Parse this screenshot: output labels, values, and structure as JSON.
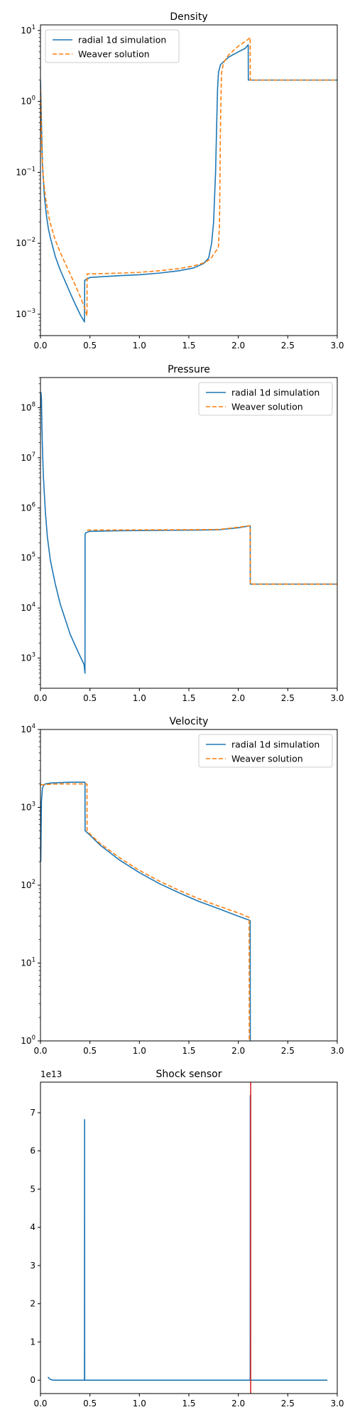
{
  "chart_data": [
    {
      "type": "line",
      "title": "Density",
      "yscale": "log",
      "xlim": [
        0,
        3
      ],
      "ylim": [
        0.0005,
        12
      ],
      "x_ticks": [
        "0.0",
        "0.5",
        "1.0",
        "1.5",
        "2.0",
        "2.5",
        "3.0"
      ],
      "y_ticks": [
        {
          "value": 0.001,
          "base": "10",
          "exp": "−3"
        },
        {
          "value": 0.01,
          "base": "10",
          "exp": "−2"
        },
        {
          "value": 0.1,
          "base": "10",
          "exp": "−1"
        },
        {
          "value": 1,
          "base": "10",
          "exp": "0"
        },
        {
          "value": 10,
          "base": "10",
          "exp": "1"
        }
      ],
      "legend": {
        "position": "upper-left"
      },
      "series": [
        {
          "name": "radial 1d simulation",
          "color": "#1f77b4",
          "dash": "solid",
          "x": [
            0.0,
            0.01,
            0.02,
            0.04,
            0.06,
            0.08,
            0.1,
            0.15,
            0.2,
            0.25,
            0.3,
            0.35,
            0.4,
            0.44,
            0.445,
            0.447,
            0.5,
            0.8,
            1.0,
            1.2,
            1.4,
            1.55,
            1.65,
            1.7,
            1.73,
            1.75,
            1.77,
            1.78,
            1.79,
            1.8,
            1.82,
            1.9,
            2.0,
            2.07,
            2.1,
            2.101,
            2.11,
            2.2,
            2.5,
            3.0
          ],
          "y": [
            2.0,
            0.5,
            0.13,
            0.045,
            0.025,
            0.016,
            0.012,
            0.0065,
            0.0042,
            0.0029,
            0.002,
            0.0014,
            0.001,
            0.0008,
            0.00078,
            0.003,
            0.0033,
            0.0035,
            0.0036,
            0.0038,
            0.0041,
            0.0045,
            0.0052,
            0.0062,
            0.01,
            0.02,
            0.1,
            0.4,
            1.5,
            2.6,
            3.3,
            4.2,
            5.0,
            5.6,
            6.3,
            2.0,
            2.0,
            2.0,
            2.0,
            2.0
          ]
        },
        {
          "name": "Weaver solution",
          "color": "#ff7f0e",
          "dash": "dashed",
          "x": [
            0.0,
            0.015,
            0.03,
            0.05,
            0.08,
            0.1,
            0.15,
            0.2,
            0.25,
            0.3,
            0.35,
            0.4,
            0.45,
            0.47,
            0.471,
            0.5,
            0.8,
            1.0,
            1.2,
            1.4,
            1.55,
            1.65,
            1.72,
            1.75,
            1.78,
            1.8,
            1.81,
            1.82,
            1.83,
            1.85,
            1.9,
            2.0,
            2.1,
            2.12,
            2.121,
            2.2,
            3.0
          ],
          "y": [
            1.5,
            0.18,
            0.08,
            0.045,
            0.025,
            0.019,
            0.011,
            0.0075,
            0.0052,
            0.0037,
            0.0026,
            0.0018,
            0.0012,
            0.00095,
            0.0037,
            0.0037,
            0.0038,
            0.0039,
            0.0041,
            0.0044,
            0.0048,
            0.0053,
            0.006,
            0.007,
            0.008,
            0.009,
            0.02,
            0.5,
            2.5,
            3.5,
            4.5,
            6.0,
            7.5,
            8.0,
            2.0,
            2.0,
            2.0
          ]
        }
      ]
    },
    {
      "type": "line",
      "title": "Pressure",
      "yscale": "log",
      "xlim": [
        0,
        3
      ],
      "ylim": [
        250,
        400000000
      ],
      "x_ticks": [
        "0.0",
        "0.5",
        "1.0",
        "1.5",
        "2.0",
        "2.5",
        "3.0"
      ],
      "y_ticks": [
        {
          "value": 1000,
          "base": "10",
          "exp": "3"
        },
        {
          "value": 10000,
          "base": "10",
          "exp": "4"
        },
        {
          "value": 100000,
          "base": "10",
          "exp": "5"
        },
        {
          "value": 1000000,
          "base": "10",
          "exp": "6"
        },
        {
          "value": 10000000,
          "base": "10",
          "exp": "7"
        },
        {
          "value": 100000000,
          "base": "10",
          "exp": "8"
        }
      ],
      "legend": {
        "position": "upper-right"
      },
      "series": [
        {
          "name": "radial 1d simulation",
          "color": "#1f77b4",
          "dash": "solid",
          "x": [
            0.0,
            0.005,
            0.01,
            0.015,
            0.02,
            0.03,
            0.04,
            0.05,
            0.07,
            0.1,
            0.15,
            0.2,
            0.25,
            0.3,
            0.35,
            0.4,
            0.44,
            0.45,
            0.451,
            0.46,
            0.5,
            0.8,
            1.2,
            1.6,
            1.8,
            2.0,
            2.12,
            2.121,
            2.2,
            3.0
          ],
          "y": [
            100000000,
            200000000,
            150000000,
            40000000,
            15000000,
            4000000,
            1800000,
            800000,
            260000,
            90000,
            30000,
            12000,
            6000,
            3000,
            1800,
            1100,
            750,
            500,
            300000,
            320000,
            340000,
            350000,
            355000,
            360000,
            365000,
            400000,
            440000,
            30000,
            30000,
            30000
          ]
        },
        {
          "name": "Weaver solution",
          "color": "#ff7f0e",
          "dash": "dashed",
          "x": [
            0.47,
            0.5,
            0.8,
            1.2,
            1.6,
            1.8,
            2.0,
            2.12,
            2.121,
            2.2,
            3.0
          ],
          "y": [
            360000,
            360000,
            362000,
            365000,
            368000,
            370000,
            410000,
            440000,
            30000,
            30000,
            30000
          ]
        }
      ]
    },
    {
      "type": "line",
      "title": "Velocity",
      "yscale": "log",
      "xlim": [
        0,
        3
      ],
      "ylim": [
        1,
        10000
      ],
      "x_ticks": [
        "0.0",
        "0.5",
        "1.0",
        "1.5",
        "2.0",
        "2.5",
        "3.0"
      ],
      "y_ticks": [
        {
          "value": 1,
          "base": "10",
          "exp": "0"
        },
        {
          "value": 10,
          "base": "10",
          "exp": "1"
        },
        {
          "value": 100,
          "base": "10",
          "exp": "2"
        },
        {
          "value": 1000,
          "base": "10",
          "exp": "3"
        },
        {
          "value": 10000,
          "base": "10",
          "exp": "4"
        }
      ],
      "legend": {
        "position": "upper-right"
      },
      "series": [
        {
          "name": "radial 1d simulation",
          "color": "#1f77b4",
          "dash": "solid",
          "x": [
            0.003,
            0.01,
            0.02,
            0.03,
            0.05,
            0.1,
            0.2,
            0.3,
            0.44,
            0.45,
            0.451,
            0.5,
            0.6,
            0.8,
            1.0,
            1.2,
            1.4,
            1.6,
            1.8,
            2.0,
            2.1,
            2.12,
            2.121,
            2.122
          ],
          "y": [
            200,
            1200,
            1750,
            1900,
            2000,
            2050,
            2080,
            2100,
            2100,
            2100,
            500,
            440,
            330,
            210,
            145,
            105,
            80,
            62,
            50,
            40,
            36,
            35,
            1,
            0.5
          ]
        },
        {
          "name": "Weaver solution",
          "color": "#ff7f0e",
          "dash": "dashed",
          "x": [
            0.0,
            0.05,
            0.1,
            0.2,
            0.3,
            0.4,
            0.47,
            0.471,
            0.5,
            0.6,
            0.8,
            1.0,
            1.2,
            1.4,
            1.6,
            1.8,
            2.0,
            2.1,
            2.11,
            2.111,
            2.112
          ],
          "y": [
            1950,
            1960,
            1980,
            2000,
            2000,
            2000,
            2000,
            500,
            455,
            345,
            225,
            155,
            113,
            86,
            67,
            54,
            44,
            39,
            38,
            1,
            0.5
          ]
        }
      ]
    },
    {
      "type": "line",
      "title": "Shock sensor",
      "yscale": "linear",
      "xlim": [
        0,
        3
      ],
      "ylim": [
        -0.35,
        7.8
      ],
      "offset_text": "1e13",
      "x_ticks": [
        "0.0",
        "0.5",
        "1.0",
        "1.5",
        "2.0",
        "2.5",
        "3.0"
      ],
      "y_ticks": [
        "0",
        "1",
        "2",
        "3",
        "4",
        "5",
        "6",
        "7"
      ],
      "y_tick_values": [
        0,
        1,
        2,
        3,
        4,
        5,
        6,
        7
      ],
      "markers": [
        {
          "x": 2.125,
          "color": "#d62728"
        }
      ],
      "series": [
        {
          "name": "",
          "color": "#1f77b4",
          "dash": "solid",
          "x": [
            0.075,
            0.08,
            0.09,
            0.1,
            0.12,
            0.15,
            0.44,
            0.445,
            0.446,
            0.447,
            0.45,
            2.11,
            2.12,
            2.121,
            2.122,
            2.13,
            2.9
          ],
          "y": [
            0.08,
            0.07,
            0.04,
            0.02,
            0.005,
            0.0,
            0.0,
            0.0,
            6.82,
            0.0,
            0.0,
            0.0,
            0.0,
            7.45,
            0.0,
            0.0,
            0.0
          ]
        }
      ]
    }
  ]
}
